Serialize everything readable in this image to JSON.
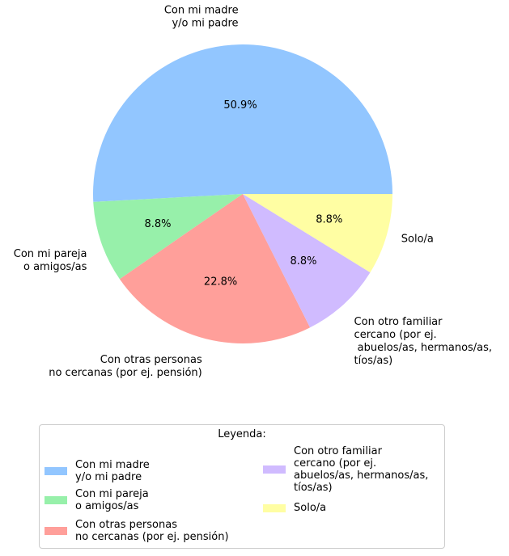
{
  "chart_data": {
    "type": "pie",
    "slices": [
      {
        "label": "Con mi madre\ny/o mi padre",
        "value": 50.9,
        "pct_label": "50.9%",
        "color": "#92c6ff"
      },
      {
        "label": "Con mi pareja\no amigos/as",
        "value": 8.8,
        "pct_label": "8.8%",
        "color": "#97f0aa"
      },
      {
        "label": "Con otras personas\nno cercanas (por ej. pensión)",
        "value": 22.8,
        "pct_label": "22.8%",
        "color": "#ff9f9a"
      },
      {
        "label": "Con otro familiar\ncercano (por ej.\n abuelos/as, hermanos/as,\ntíos/as)",
        "value": 8.8,
        "pct_label": "8.8%",
        "color": "#d0bbff"
      },
      {
        "label": "Solo/a",
        "value": 8.8,
        "pct_label": "8.8%",
        "color": "#fffea3"
      }
    ],
    "legend": {
      "title": "Leyenda:",
      "placement": "bottom",
      "columns": 2
    }
  }
}
